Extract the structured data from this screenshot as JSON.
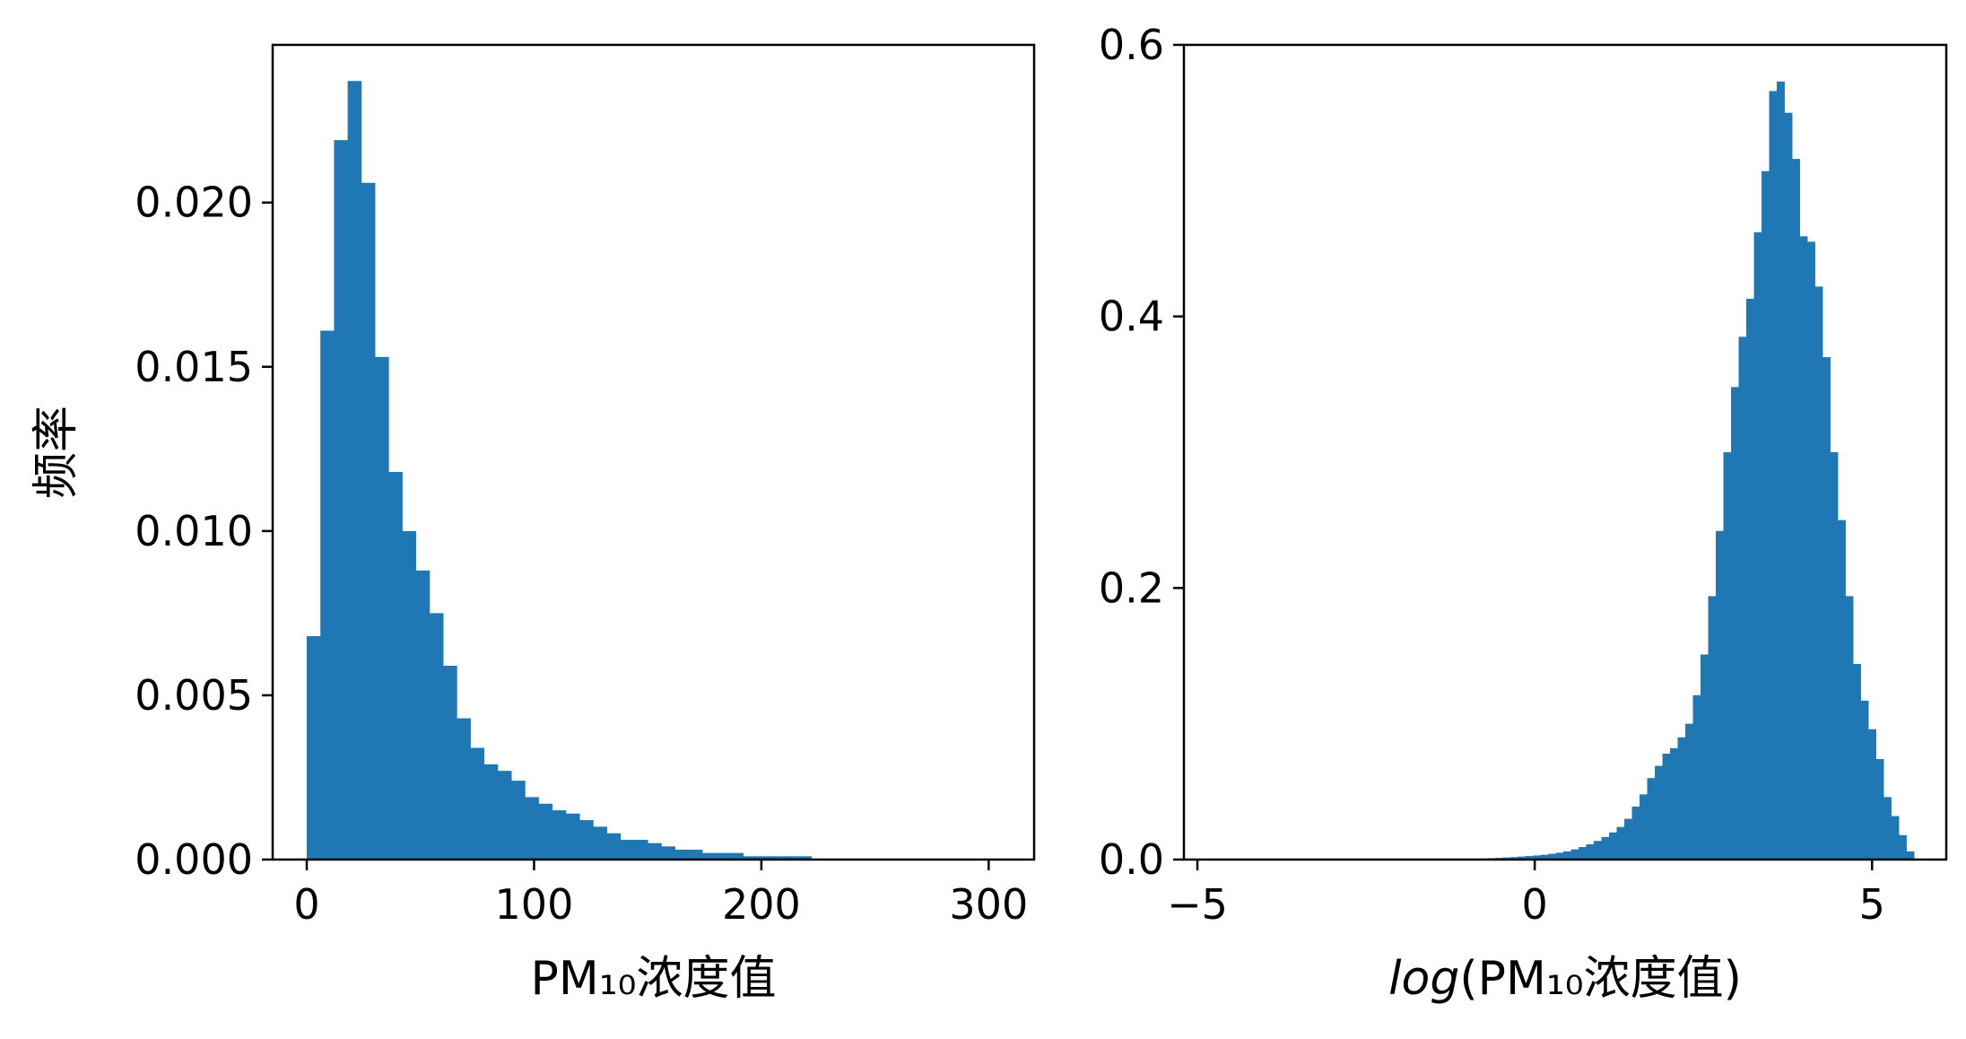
{
  "chart_data": [
    {
      "type": "bar",
      "subtype": "histogram",
      "xlabel": "PM₁₀浓度值",
      "ylabel": "频率",
      "xlim": [
        -15,
        320
      ],
      "ylim": [
        0,
        0.0248
      ],
      "xticks": [
        0,
        100,
        200,
        300
      ],
      "xtick_labels": [
        "0",
        "100",
        "200",
        "300"
      ],
      "yticks": [
        0.0,
        0.005,
        0.01,
        0.015,
        0.02
      ],
      "ytick_labels": [
        "0.000",
        "0.005",
        "0.010",
        "0.015",
        "0.020"
      ],
      "grid": false,
      "color": "#1f77b4",
      "bin_width": 6,
      "bin_start": 0,
      "values": [
        0.0068,
        0.0161,
        0.0219,
        0.0237,
        0.0206,
        0.0153,
        0.0118,
        0.01,
        0.0088,
        0.0075,
        0.0059,
        0.0043,
        0.0034,
        0.0029,
        0.0027,
        0.0024,
        0.0019,
        0.0017,
        0.0015,
        0.0014,
        0.0012,
        0.001,
        0.0008,
        0.0006,
        0.0006,
        0.0005,
        0.0004,
        0.0003,
        0.0003,
        0.0002,
        0.0002,
        0.0002,
        0.0001,
        0.0001,
        0.0001,
        0.0001,
        0.0001,
        0.0,
        0.0,
        0.0,
        0.0,
        0.0,
        0.0,
        0.0,
        0.0,
        0.0,
        0.0,
        0.0,
        0.0,
        0.0
      ]
    },
    {
      "type": "bar",
      "subtype": "histogram",
      "xlabel": "log(PM₁₀浓度值)",
      "xlabel_italic_part": "log",
      "ylabel": "",
      "xlim": [
        -5.2,
        6.1
      ],
      "ylim": [
        0,
        0.6
      ],
      "xticks": [
        -5,
        0,
        5
      ],
      "xtick_labels": [
        "−5",
        "0",
        "5"
      ],
      "yticks": [
        0.0,
        0.2,
        0.4,
        0.6
      ],
      "ytick_labels": [
        "0.0",
        "0.2",
        "0.4",
        "0.6"
      ],
      "grid": false,
      "color": "#1f77b4",
      "bin_width": 0.113,
      "bin_start": -5.0,
      "values": [
        0.0005,
        0.0,
        0.0,
        0.0,
        0.0,
        0.0,
        0.0,
        0.0,
        0.0,
        0.0,
        0.0,
        0.0,
        0.0,
        0.0,
        0.0,
        0.0,
        0.0,
        0.0,
        0.0,
        0.0,
        0.0,
        0.0,
        0.0,
        0.0,
        0.0,
        0.0,
        0.0,
        0.0,
        0.0,
        0.0,
        0.0,
        0.0,
        0.0,
        0.0,
        0.0,
        0.0,
        0.0,
        0.0,
        0.001,
        0.0012,
        0.0015,
        0.0018,
        0.0022,
        0.0026,
        0.003,
        0.0035,
        0.0042,
        0.005,
        0.006,
        0.0075,
        0.0092,
        0.0113,
        0.0137,
        0.0166,
        0.02,
        0.024,
        0.03,
        0.039,
        0.048,
        0.06,
        0.069,
        0.078,
        0.082,
        0.09,
        0.1,
        0.121,
        0.151,
        0.194,
        0.242,
        0.3,
        0.348,
        0.385,
        0.413,
        0.462,
        0.507,
        0.566,
        0.573,
        0.55,
        0.516,
        0.459,
        0.455,
        0.422,
        0.37,
        0.3,
        0.25,
        0.194,
        0.144,
        0.117,
        0.096,
        0.074,
        0.046,
        0.032,
        0.018,
        0.006
      ]
    }
  ]
}
